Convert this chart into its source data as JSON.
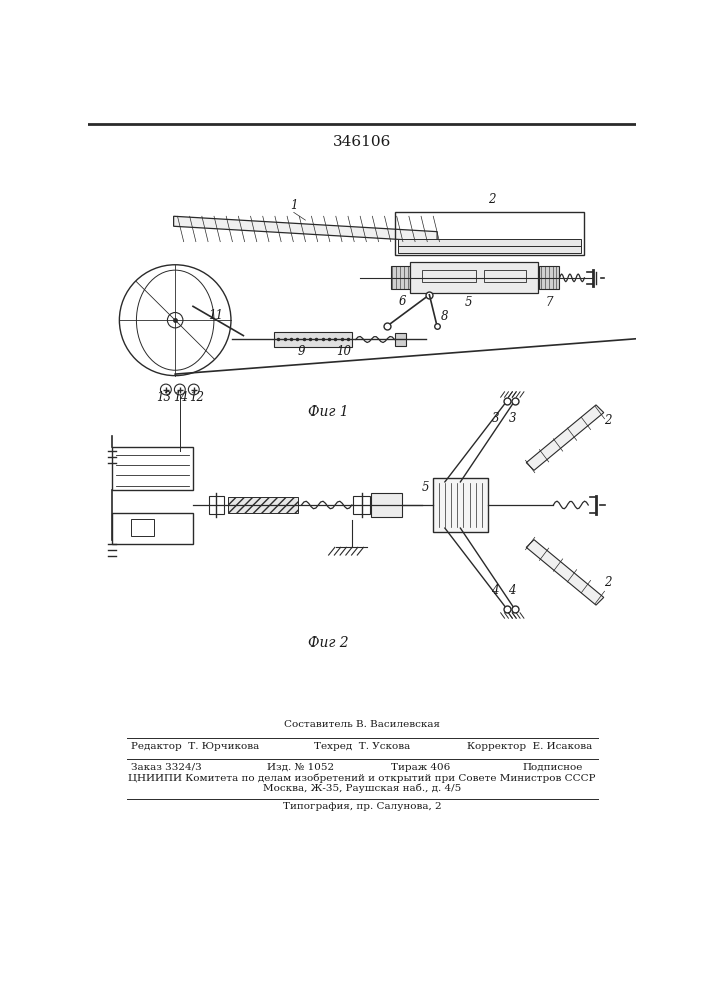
{
  "title_number": "346106",
  "fig1_label": "Фиг 1",
  "fig2_label": "Фиг 2",
  "compositor": "Составитель В. Василевская",
  "editor": "Редактор  Т. Юрчикова",
  "techred": "Техред  Т. Ускова",
  "corrector": "Корректор  Е. Исакова",
  "order": "Заказ 3324/3",
  "edition": "Изд. № 1052",
  "circulation": "Тираж 406",
  "subscription": "Подписное",
  "cniip": "ЦНИИПИ Комитета по делам изобретений и открытий при Совете Министров СССР",
  "address": "Москва, Ж-35, Раушская наб., д. 4/5",
  "typography": "Типография, пр. Салунова, 2",
  "bg_color": "#ffffff",
  "line_color": "#2a2a2a",
  "text_color": "#1a1a1a"
}
